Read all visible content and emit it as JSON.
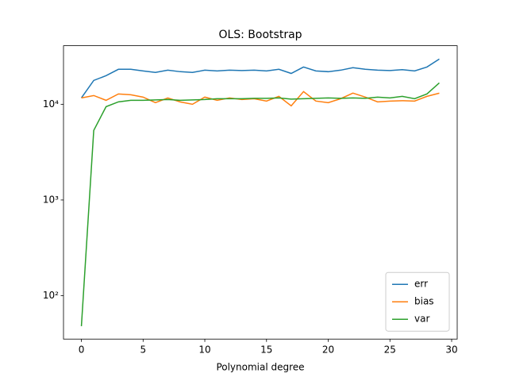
{
  "chart_data": {
    "type": "line",
    "title": "OLS: Bootstrap",
    "x_label": "Polynomial degree",
    "x": [
      0,
      1,
      2,
      3,
      4,
      5,
      6,
      7,
      8,
      9,
      10,
      11,
      12,
      13,
      14,
      15,
      16,
      17,
      18,
      19,
      20,
      21,
      22,
      23,
      24,
      25,
      26,
      27,
      28,
      29
    ],
    "series": [
      {
        "name": "err",
        "color": "#1f77b4",
        "values": [
          11650,
          17750,
          19900,
          23200,
          23200,
          22300,
          21500,
          22700,
          21900,
          21500,
          22700,
          22300,
          22700,
          22500,
          22700,
          22300,
          23200,
          21000,
          24500,
          22300,
          21900,
          22700,
          24100,
          23200,
          22700,
          22500,
          23000,
          22300,
          24500,
          29700
        ]
      },
      {
        "name": "bias",
        "color": "#ff7f0e",
        "values": [
          11650,
          12340,
          11000,
          12820,
          12580,
          11880,
          10390,
          11650,
          10590,
          10000,
          11880,
          11000,
          11650,
          11210,
          11430,
          10800,
          12100,
          9630,
          13570,
          10800,
          10390,
          11430,
          13070,
          11880,
          10590,
          10800,
          10900,
          10800,
          12100,
          13070
        ]
      },
      {
        "name": "var",
        "color": "#2ca02c",
        "values": [
          48,
          5330,
          9440,
          10590,
          11000,
          11000,
          11100,
          11210,
          11000,
          11100,
          11210,
          11430,
          11430,
          11430,
          11530,
          11530,
          11650,
          11320,
          11430,
          11530,
          11650,
          11530,
          11650,
          11530,
          11880,
          11650,
          12100,
          11430,
          12820,
          16740
        ]
      }
    ],
    "xlim": [
      -1.45,
      30.45
    ],
    "xticks": [
      0,
      5,
      10,
      15,
      20,
      25,
      30
    ],
    "ylim": [
      35.2,
      40900
    ],
    "y_scale": "log",
    "yticks": [
      {
        "value": 100,
        "label": "10²"
      },
      {
        "value": 1000,
        "label": "10³"
      },
      {
        "value": 10000,
        "label": "10⁴"
      }
    ],
    "legend": "lower right",
    "grid": false
  }
}
